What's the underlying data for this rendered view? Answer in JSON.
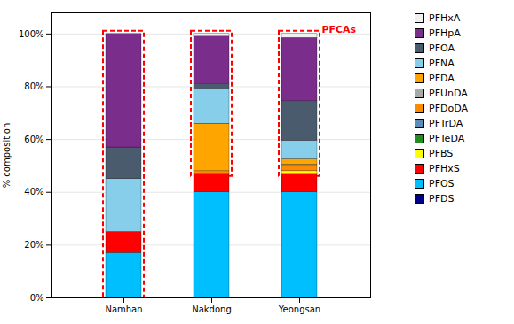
{
  "chart_data": {
    "type": "bar",
    "stacked": true,
    "categories": [
      "Namhan",
      "Nakdong",
      "Yeongsan"
    ],
    "series": [
      {
        "name": "PFDS",
        "color": "#00008B",
        "values": [
          0.0,
          0.0,
          0.0
        ]
      },
      {
        "name": "PFOS",
        "color": "#00BFFF",
        "values": [
          17.0,
          40.0,
          40.0
        ]
      },
      {
        "name": "PFHxS",
        "color": "#FF0000",
        "values": [
          8.0,
          7.0,
          7.0
        ]
      },
      {
        "name": "PFBS",
        "color": "#FFFF00",
        "values": [
          0.0,
          0.0,
          1.0
        ]
      },
      {
        "name": "PFTeDA",
        "color": "#228B22",
        "values": [
          0.0,
          0.0,
          0.0
        ]
      },
      {
        "name": "PFTrDA",
        "color": "#5B8DB8",
        "values": [
          0.0,
          0.0,
          0.0
        ]
      },
      {
        "name": "PFDoDA",
        "color": "#FF8C00",
        "values": [
          0.0,
          1.0,
          2.0
        ]
      },
      {
        "name": "PFUnDA",
        "color": "#A9A9A9",
        "values": [
          0.0,
          0.0,
          0.5
        ]
      },
      {
        "name": "PFDA",
        "color": "#FFA500",
        "values": [
          0.0,
          18.0,
          2.0
        ]
      },
      {
        "name": "PFNA",
        "color": "#87CEEB",
        "values": [
          20.0,
          13.0,
          7.0
        ]
      },
      {
        "name": "PFOA",
        "color": "#4B5B6E",
        "values": [
          12.0,
          2.0,
          15.0
        ]
      },
      {
        "name": "PFHpA",
        "color": "#7B2D8B",
        "values": [
          43.0,
          18.0,
          24.0
        ]
      },
      {
        "name": "PFHxA",
        "color": "#F0F0F0",
        "values": [
          0.0,
          1.0,
          1.5
        ]
      }
    ],
    "ylabel": "% composition",
    "ylim": [
      0,
      108
    ],
    "yticks": [
      {
        "value": 0,
        "label": "0%"
      },
      {
        "value": 20,
        "label": "20%"
      },
      {
        "value": 40,
        "label": "40%"
      },
      {
        "value": 60,
        "label": "60%"
      },
      {
        "value": 80,
        "label": "80%"
      },
      {
        "value": 100,
        "label": "100%"
      }
    ],
    "grid": true,
    "legend": "right",
    "boxes": [
      {
        "category": "Namhan",
        "y0": 0.0,
        "y1": 100.0,
        "color": "red"
      },
      {
        "category": "Nakdong",
        "y0": 47.0,
        "y1": 100.0,
        "color": "red"
      },
      {
        "category": "Yeongsan",
        "y0": 47.0,
        "y1": 100.0,
        "color": "red"
      }
    ],
    "annotations": [
      {
        "text": "PFCAs",
        "category": "Yeongsan",
        "y": 100.5,
        "color": "red"
      }
    ]
  }
}
